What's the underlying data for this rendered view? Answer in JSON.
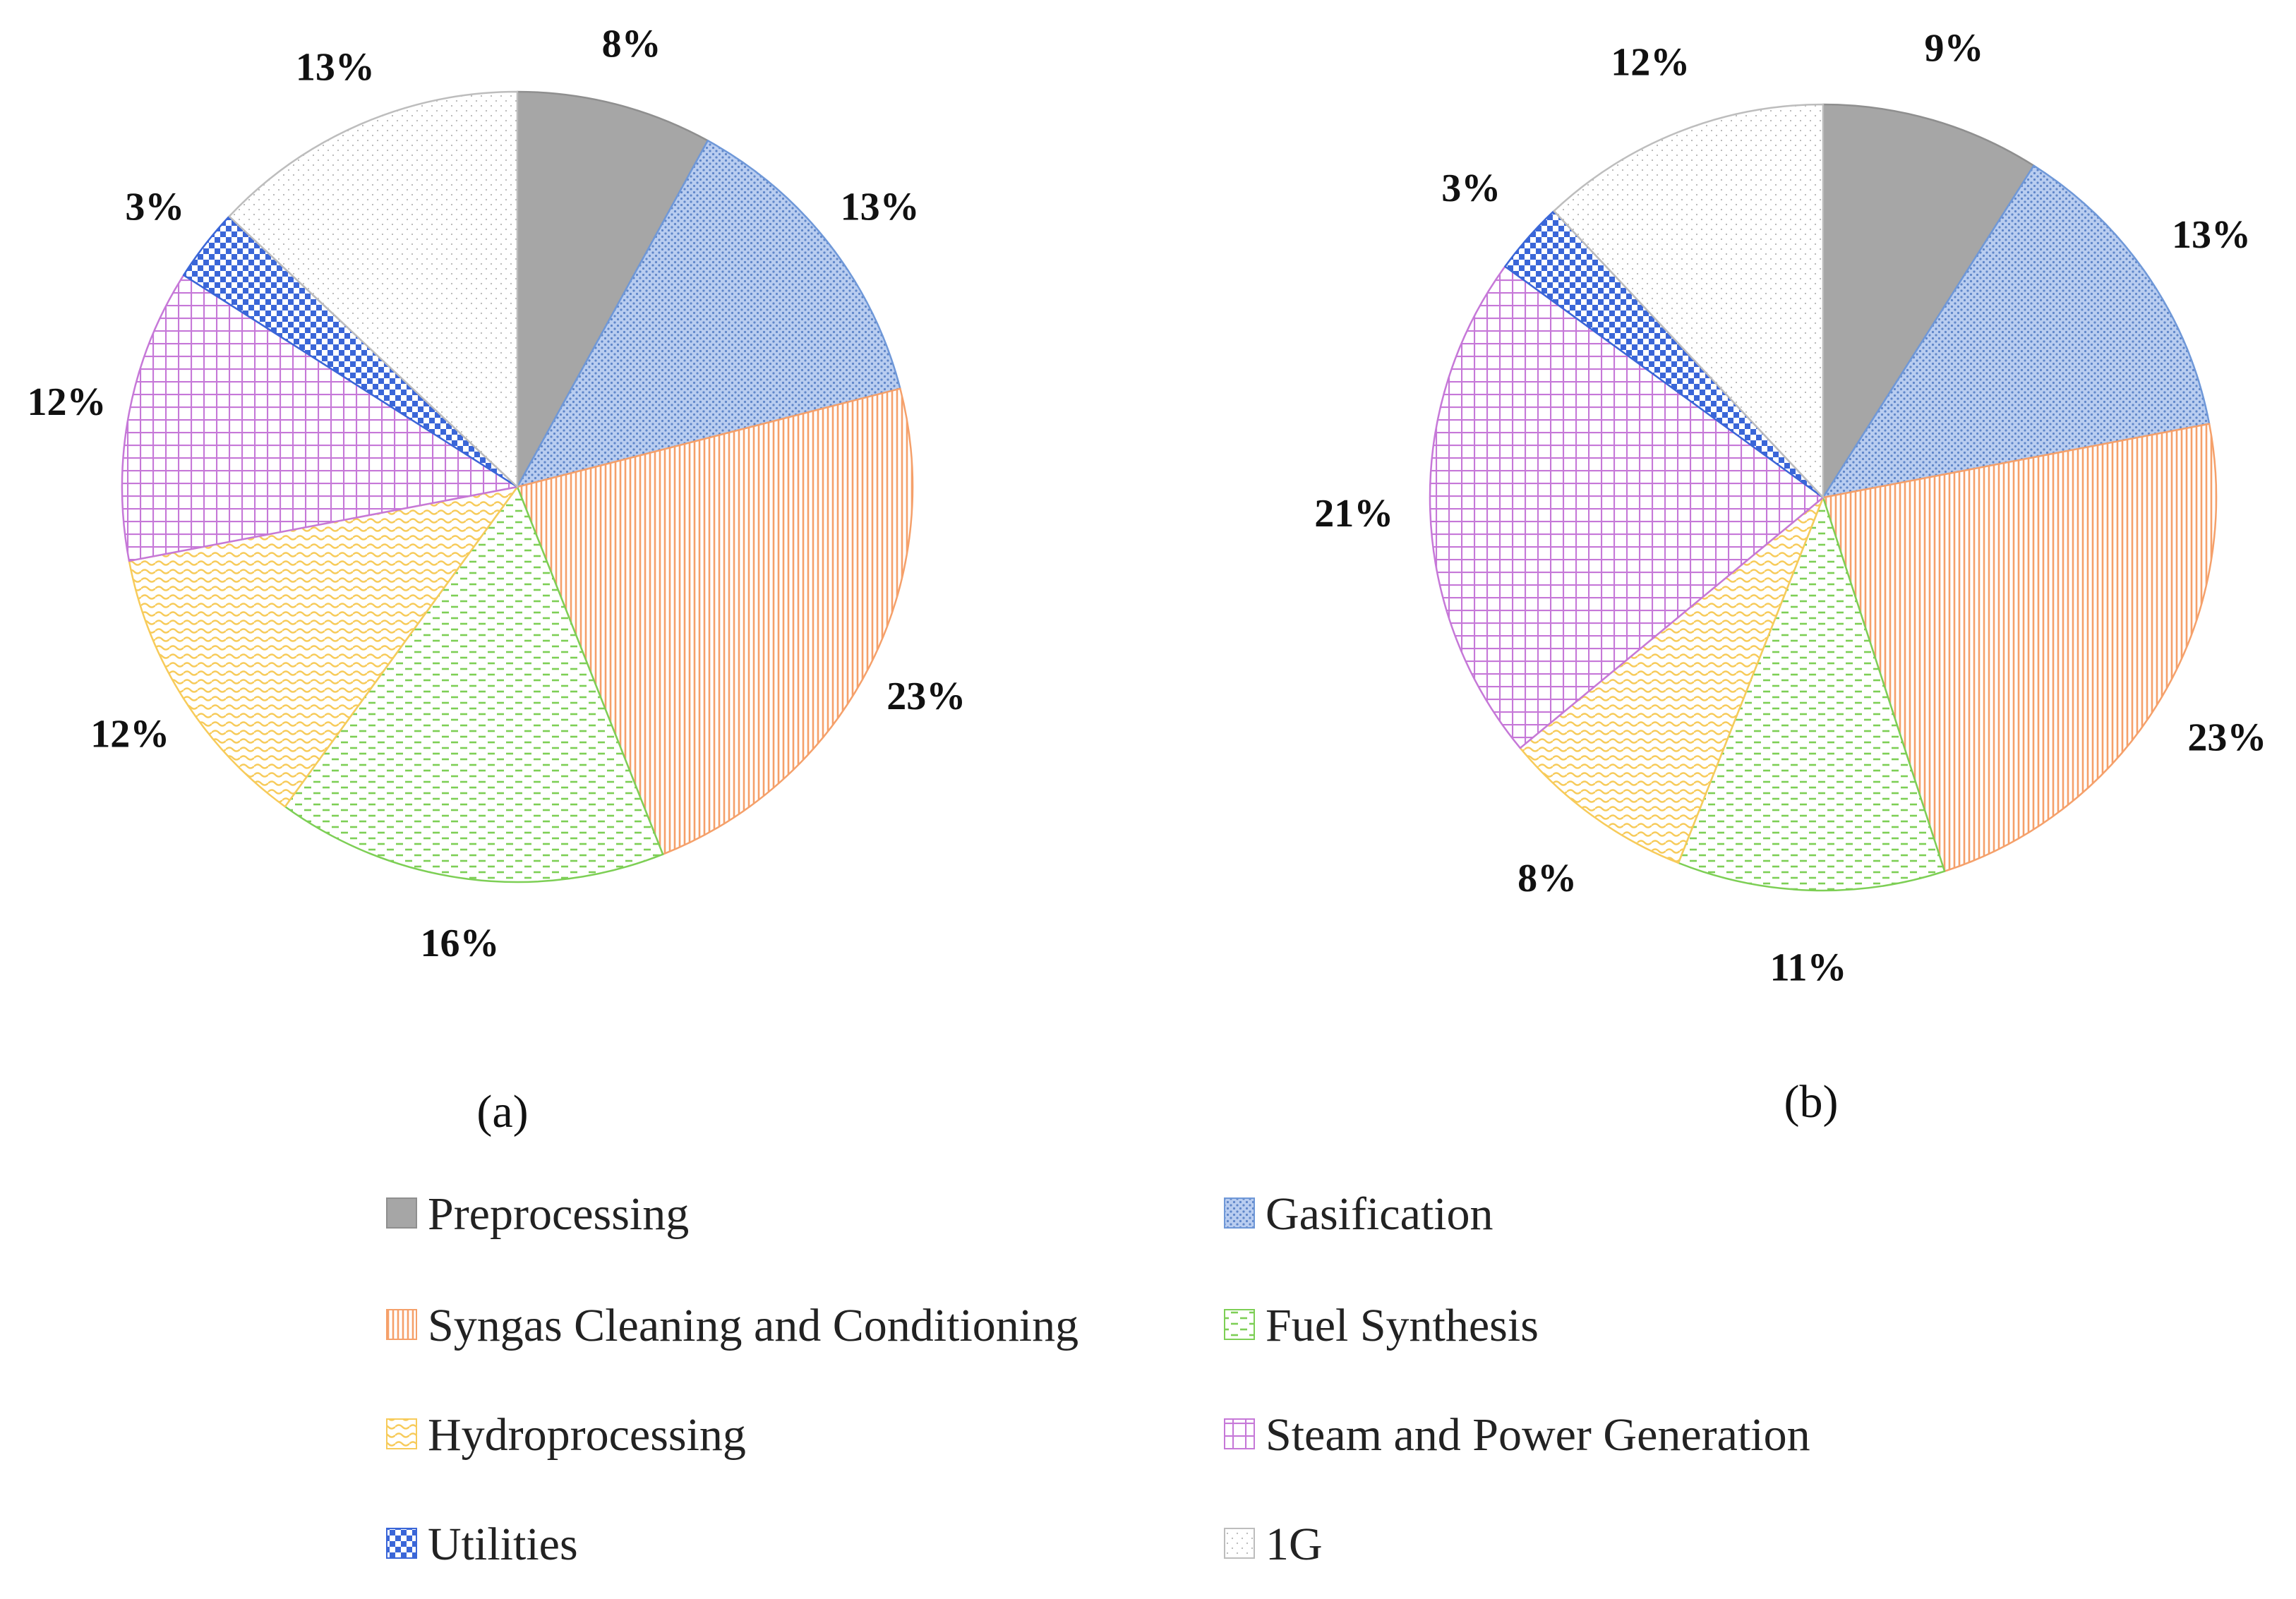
{
  "categories": [
    {
      "name": "Preprocessing",
      "key": "pre",
      "color": "#a6a6a6",
      "pattern": "solid"
    },
    {
      "name": "Gasification",
      "key": "gas",
      "color": "#6f98d8",
      "pattern": "dots"
    },
    {
      "name": "Syngas Cleaning and Conditioning",
      "key": "syn",
      "color": "#f5a06a",
      "pattern": "vlines"
    },
    {
      "name": "Fuel Synthesis",
      "key": "fuel",
      "color": "#7dcf55",
      "pattern": "dashes"
    },
    {
      "name": "Hydroprocessing",
      "key": "hyd",
      "color": "#f7cb5a",
      "pattern": "waves"
    },
    {
      "name": "Steam and Power Generation",
      "key": "stm",
      "color": "#c678d8",
      "pattern": "grid"
    },
    {
      "name": "Utilities",
      "key": "utl",
      "color": "#3a66d8",
      "pattern": "checker"
    },
    {
      "name": "1G",
      "key": "oneg",
      "color": "#bdbdbd",
      "pattern": "sparse"
    }
  ],
  "chart_data": [
    {
      "type": "pie",
      "panel_label": "(a)",
      "categories": [
        "Preprocessing",
        "Gasification",
        "Syngas Cleaning and Conditioning",
        "Fuel Synthesis",
        "Hydroprocessing",
        "Steam and Power Generation",
        "Utilities",
        "1G"
      ],
      "values": [
        8,
        13,
        23,
        16,
        12,
        12,
        3,
        13
      ],
      "labels": [
        "8%",
        "13%",
        "23%",
        "16%",
        "12%",
        "12%",
        "3%",
        "13%"
      ],
      "start": "12 o'clock",
      "direction": "clockwise"
    },
    {
      "type": "pie",
      "panel_label": "(b)",
      "categories": [
        "Preprocessing",
        "Gasification",
        "Syngas Cleaning and Conditioning",
        "Fuel Synthesis",
        "Hydroprocessing",
        "Steam and Power Generation",
        "Utilities",
        "1G"
      ],
      "values": [
        9,
        13,
        23,
        11,
        8,
        21,
        3,
        12
      ],
      "labels": [
        "9%",
        "13%",
        "23%",
        "11%",
        "8%",
        "21%",
        "3%",
        "12%"
      ],
      "start": "12 o'clock",
      "direction": "clockwise"
    }
  ],
  "legend": {
    "position": "bottom",
    "items": [
      "Preprocessing",
      "Gasification",
      "Syngas Cleaning and Conditioning",
      "Fuel Synthesis",
      "Hydroprocessing",
      "Steam and Power Generation",
      "Utilities",
      "1G"
    ]
  }
}
